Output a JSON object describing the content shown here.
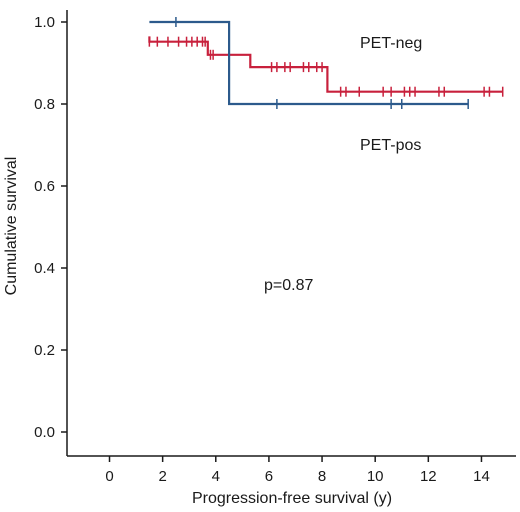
{
  "chart_data": {
    "type": "line",
    "subtype": "kaplan-meier step curve with censor ticks",
    "xlabel": "Progression-free survival (y)",
    "ylabel": "Cumulative survival",
    "xlim": [
      -1.6,
      15.3
    ],
    "ylim": [
      0.0,
      1.0
    ],
    "x_ticks": [
      0,
      2,
      4,
      6,
      8,
      10,
      12,
      14
    ],
    "y_ticks": [
      0.0,
      0.2,
      0.4,
      0.6,
      0.8,
      1.0
    ],
    "x_tick_labels": [
      "0",
      "2",
      "4",
      "6",
      "8",
      "10",
      "12",
      "14"
    ],
    "y_tick_labels": [
      "0.0",
      "0.2",
      "0.4",
      "0.6",
      "0.8",
      "1.0"
    ],
    "grid": false,
    "annotation": "p=0.87",
    "series": [
      {
        "name": "PET-neg",
        "color": "#c8203c",
        "steps": [
          {
            "x": 1.5,
            "y": 0.965
          },
          {
            "x": 1.5,
            "y": 0.952
          },
          {
            "x": 3.7,
            "y": 0.952
          },
          {
            "x": 3.7,
            "y": 0.92
          },
          {
            "x": 5.3,
            "y": 0.92
          },
          {
            "x": 5.3,
            "y": 0.89
          },
          {
            "x": 8.2,
            "y": 0.89
          },
          {
            "x": 8.2,
            "y": 0.83
          },
          {
            "x": 14.8,
            "y": 0.83
          }
        ],
        "censored": [
          {
            "x": 1.5,
            "y": 0.952
          },
          {
            "x": 1.8,
            "y": 0.952
          },
          {
            "x": 2.2,
            "y": 0.952
          },
          {
            "x": 2.6,
            "y": 0.952
          },
          {
            "x": 2.9,
            "y": 0.952
          },
          {
            "x": 3.1,
            "y": 0.952
          },
          {
            "x": 3.3,
            "y": 0.952
          },
          {
            "x": 3.5,
            "y": 0.952
          },
          {
            "x": 3.6,
            "y": 0.952
          },
          {
            "x": 3.8,
            "y": 0.92
          },
          {
            "x": 3.9,
            "y": 0.92
          },
          {
            "x": 6.1,
            "y": 0.89
          },
          {
            "x": 6.3,
            "y": 0.89
          },
          {
            "x": 6.6,
            "y": 0.89
          },
          {
            "x": 6.8,
            "y": 0.89
          },
          {
            "x": 7.3,
            "y": 0.89
          },
          {
            "x": 7.5,
            "y": 0.89
          },
          {
            "x": 7.8,
            "y": 0.89
          },
          {
            "x": 8.0,
            "y": 0.89
          },
          {
            "x": 8.7,
            "y": 0.83
          },
          {
            "x": 8.9,
            "y": 0.83
          },
          {
            "x": 9.4,
            "y": 0.83
          },
          {
            "x": 10.3,
            "y": 0.83
          },
          {
            "x": 10.6,
            "y": 0.83
          },
          {
            "x": 11.1,
            "y": 0.83
          },
          {
            "x": 11.3,
            "y": 0.83
          },
          {
            "x": 11.5,
            "y": 0.83
          },
          {
            "x": 12.4,
            "y": 0.83
          },
          {
            "x": 12.6,
            "y": 0.83
          },
          {
            "x": 14.1,
            "y": 0.83
          },
          {
            "x": 14.3,
            "y": 0.83
          },
          {
            "x": 14.8,
            "y": 0.83
          }
        ]
      },
      {
        "name": "PET-pos",
        "color": "#2c5a8c",
        "steps": [
          {
            "x": 1.5,
            "y": 1.0
          },
          {
            "x": 4.5,
            "y": 1.0
          },
          {
            "x": 4.5,
            "y": 0.8
          },
          {
            "x": 13.5,
            "y": 0.8
          }
        ],
        "censored": [
          {
            "x": 2.5,
            "y": 1.0
          },
          {
            "x": 6.3,
            "y": 0.8
          },
          {
            "x": 10.6,
            "y": 0.8
          },
          {
            "x": 11.0,
            "y": 0.8
          },
          {
            "x": 13.5,
            "y": 0.8
          }
        ]
      }
    ]
  }
}
